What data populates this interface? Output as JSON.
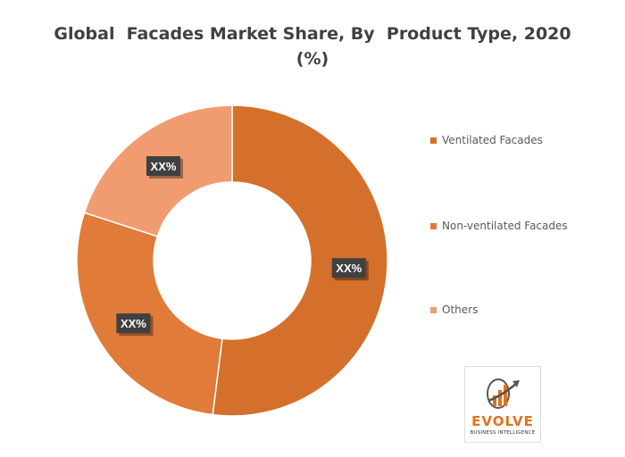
{
  "chart_data": {
    "type": "pie",
    "donut": true,
    "title_lines": [
      "Global  Facades Market Share, By  Product Type, 2020",
      "(%)"
    ],
    "categories": [
      "Ventilated Facades",
      "Non-ventilated Facades",
      "Others"
    ],
    "values": [
      52,
      28,
      20
    ],
    "data_labels": [
      "XX%",
      "XX%",
      "XX%"
    ],
    "colors": [
      "#d4702b",
      "#e07b39",
      "#f09c70"
    ],
    "legend_position": "right"
  },
  "logo": {
    "word": "EVOLVE",
    "sub": "BUSINESS INTELLIGENCE",
    "colors": {
      "accent": "#e0731f",
      "dark": "#333333"
    }
  }
}
